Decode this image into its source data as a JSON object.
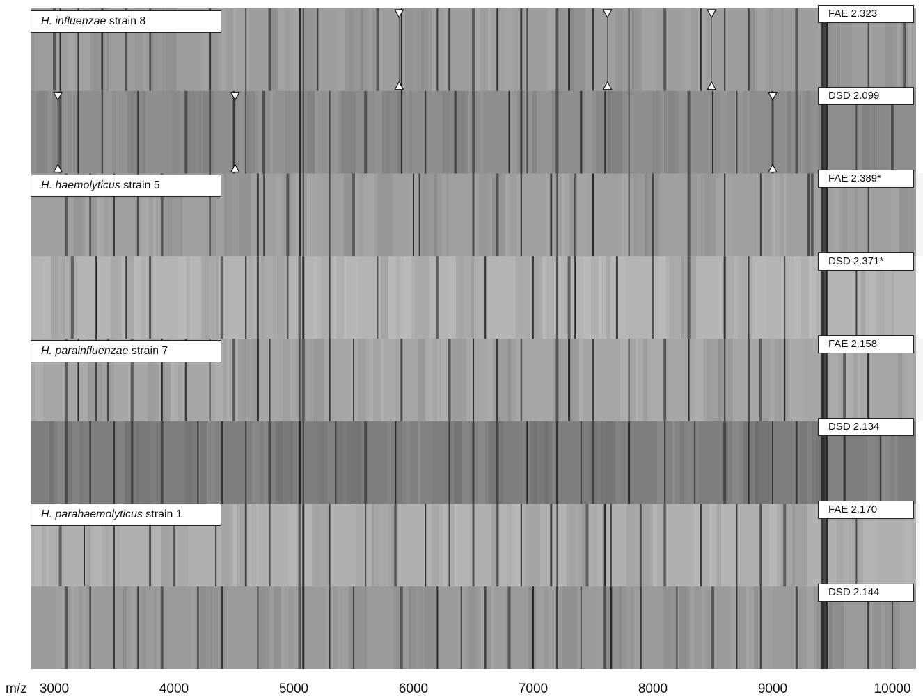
{
  "chart_data": {
    "type": "heatmap",
    "title": "",
    "xlabel": "m/z",
    "xlim": [
      2800,
      10200
    ],
    "x_ticks": [
      3000,
      4000,
      5000,
      6000,
      7000,
      8000,
      9000,
      10000
    ],
    "x_tick_labels": [
      "3000",
      "4000",
      "5000",
      "6000",
      "7000",
      "8000",
      "9000",
      "10000"
    ],
    "strains": [
      {
        "species": "H. influenzae",
        "label": "strain 8"
      },
      {
        "species": "H. haemolyticus",
        "label": "strain 5"
      },
      {
        "species": "H. parainfluenzae",
        "label": "strain 7"
      },
      {
        "species": "H. parahaemolyticus",
        "label": "strain 1"
      }
    ],
    "lanes": [
      {
        "method": "FAE",
        "score_label": "FAE 2.323",
        "base": "#9e9e9e",
        "peaks": [
          3000,
          3050,
          3200,
          3400,
          3600,
          3800,
          4300,
          4600,
          4800,
          5050,
          5080,
          5200,
          5700,
          5900,
          6200,
          6300,
          6500,
          6700,
          6900,
          6950,
          7200,
          7300,
          7500,
          7800,
          8100,
          8400,
          8600,
          8800,
          9200,
          9420,
          9450,
          9800,
          10100
        ]
      },
      {
        "method": "DSD",
        "score_label": "DSD 2.099",
        "base": "#8e8e8e",
        "peaks": [
          3050,
          3200,
          3400,
          3700,
          4100,
          4300,
          4500,
          4600,
          4750,
          5050,
          5080,
          5300,
          5600,
          5900,
          6100,
          6350,
          6500,
          6800,
          6900,
          6950,
          7200,
          7400,
          7600,
          7800,
          8300,
          8500,
          8700,
          9000,
          9200,
          9420,
          9450,
          9700,
          10000
        ]
      },
      {
        "method": "FAE",
        "score_label": "FAE 2.389*",
        "base": "#a0a0a0",
        "peaks": [
          3100,
          3300,
          3500,
          3700,
          3900,
          4300,
          4700,
          4750,
          4950,
          5050,
          5080,
          5300,
          5500,
          6000,
          6050,
          6500,
          6700,
          6900,
          7150,
          7200,
          7350,
          7500,
          7800,
          8000,
          8300,
          8600,
          8900,
          9300,
          9330,
          9420,
          9450,
          9800
        ]
      },
      {
        "method": "DSD",
        "score_label": "DSD 2.371*",
        "base": "#b4b4b4",
        "peaks": [
          3150,
          3350,
          3600,
          3800,
          4400,
          4600,
          4700,
          4950,
          5050,
          5080,
          5300,
          5700,
          6200,
          6600,
          7000,
          7200,
          7300,
          7350,
          7700,
          8000,
          8300,
          8600,
          8800,
          9100,
          9420,
          9450,
          9700
        ]
      },
      {
        "method": "FAE",
        "score_label": "FAE 2.158",
        "base": "#a6a6a6",
        "peaks": [
          3100,
          3200,
          3350,
          3450,
          3650,
          3900,
          4100,
          4300,
          4500,
          4700,
          4800,
          5050,
          5080,
          5300,
          5500,
          5900,
          6300,
          6500,
          6700,
          6900,
          7200,
          7300,
          7500,
          7800,
          8100,
          8300,
          8600,
          8800,
          8900,
          9100,
          9420,
          9450,
          9600,
          9800
        ]
      },
      {
        "method": "DSD",
        "score_label": "DSD 2.134",
        "base": "#7e7e7e",
        "peaks": [
          3100,
          3300,
          3500,
          3650,
          3900,
          4200,
          4400,
          4600,
          4800,
          5050,
          5080,
          5350,
          5600,
          5850,
          6300,
          6500,
          6700,
          6950,
          7200,
          7400,
          7500,
          7800,
          8100,
          8350,
          8600,
          8800,
          9000,
          9200,
          9420,
          9450,
          9600,
          9900
        ]
      },
      {
        "method": "FAE",
        "score_label": "FAE 2.170",
        "base": "#b0b0b0",
        "peaks": [
          3050,
          3250,
          3500,
          3800,
          4000,
          4350,
          4600,
          4800,
          5050,
          5080,
          5300,
          5600,
          5850,
          6100,
          6300,
          6500,
          6700,
          6900,
          7150,
          7200,
          7450,
          7600,
          7650,
          7900,
          8100,
          8400,
          8700,
          8900,
          9100,
          9420,
          9450,
          9700
        ]
      },
      {
        "method": "DSD",
        "score_label": "DSD 2.144",
        "base": "#9a9a9a",
        "peaks": [
          3100,
          3300,
          3500,
          3700,
          3900,
          4200,
          4400,
          4700,
          5050,
          5080,
          5300,
          5500,
          5900,
          6200,
          6400,
          6600,
          6800,
          7000,
          7200,
          7400,
          7600,
          7650,
          7900,
          8200,
          8500,
          8700,
          8900,
          9200,
          9420,
          9450,
          9800,
          10000
        ]
      }
    ],
    "markers": [
      {
        "lane": 0,
        "mz": 5880
      },
      {
        "lane": 0,
        "mz": 7620
      },
      {
        "lane": 0,
        "mz": 8490
      },
      {
        "lane": 1,
        "mz": 3030
      },
      {
        "lane": 1,
        "mz": 4510
      },
      {
        "lane": 1,
        "mz": 9000
      }
    ]
  }
}
